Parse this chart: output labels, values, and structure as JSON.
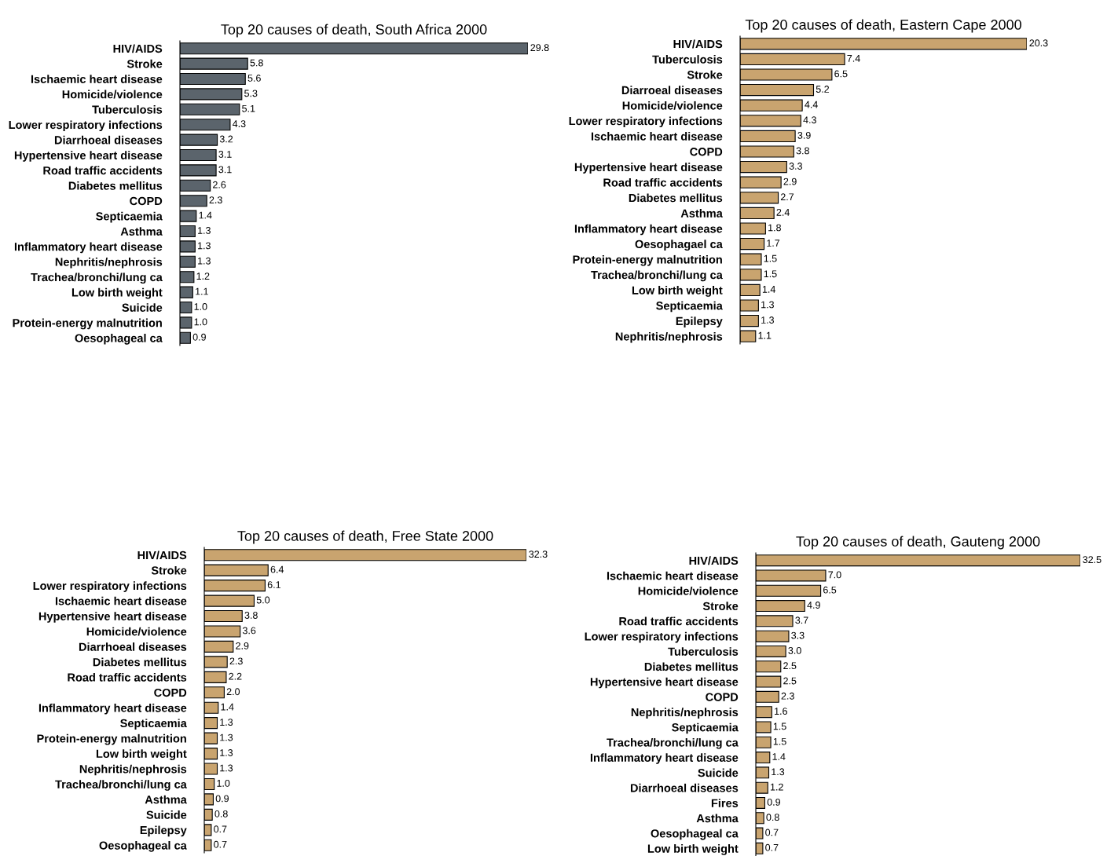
{
  "chart_data": [
    {
      "type": "bar",
      "orientation": "horizontal",
      "title": "Top 20 causes of death, South Africa 2000",
      "color": "#5b646c",
      "categories": [
        "HIV/AIDS",
        "Stroke",
        "Ischaemic heart disease",
        "Homicide/violence",
        "Tuberculosis",
        "Lower respiratory infections",
        "Diarrhoeal diseases",
        "Hypertensive heart disease",
        "Road traffic accidents",
        "Diabetes mellitus",
        "COPD",
        "Septicaemia",
        "Asthma",
        "Inflammatory heart disease",
        "Nephritis/nephrosis",
        "Trachea/bronchi/lung ca",
        "Low birth weight",
        "Suicide",
        "Protein-energy malnutrition",
        "Oesophageal ca"
      ],
      "values": [
        29.8,
        5.8,
        5.6,
        5.3,
        5.1,
        4.3,
        3.2,
        3.1,
        3.1,
        2.6,
        2.3,
        1.4,
        1.3,
        1.3,
        1.3,
        1.2,
        1.1,
        1.0,
        1.0,
        0.9
      ],
      "value_labels": [
        "29.8",
        "5.8",
        "5.6",
        "5.3",
        "5.1",
        "4.3",
        "3.2",
        "3.1",
        "3.1",
        "2.6",
        "2.3",
        "1.4",
        "1.3",
        "1.3",
        "1.3",
        "1.2",
        "1.1",
        "1.0",
        "1.0",
        "0.9"
      ]
    },
    {
      "type": "bar",
      "orientation": "horizontal",
      "title": "Top 20 causes of death, Eastern Cape 2000",
      "color": "#c9a46f",
      "categories": [
        "HIV/AIDS",
        "Tuberculosis",
        "Stroke",
        "Diarroeal diseases",
        "Homicide/violence",
        "Lower respiratory infections",
        "Ischaemic heart disease",
        "COPD",
        "Hypertensive heart disease",
        "Road traffic accidents",
        "Diabetes mellitus",
        "Asthma",
        "Inflammatory heart disease",
        "Oesophagael ca",
        "Protein-energy malnutrition",
        "Trachea/bronchi/lung ca",
        "Low birth weight",
        "Septicaemia",
        "Epilepsy",
        "Nephritis/nephrosis"
      ],
      "values": [
        20.3,
        7.4,
        6.5,
        5.2,
        4.4,
        4.3,
        3.9,
        3.8,
        3.3,
        2.9,
        2.7,
        2.4,
        1.8,
        1.7,
        1.5,
        1.5,
        1.4,
        1.3,
        1.3,
        1.1
      ],
      "value_labels": [
        "20.3",
        "7.4",
        "6.5",
        "5.2",
        "4.4",
        "4.3",
        "3.9",
        "3.8",
        "3.3",
        "2.9",
        "2.7",
        "2.4",
        "1.8",
        "1.7",
        "1.5",
        "1.5",
        "1.4",
        "1.3",
        "1.3",
        "1.1"
      ]
    },
    {
      "type": "bar",
      "orientation": "horizontal",
      "title": "Top 20 causes of death, Free State 2000",
      "color": "#c9a46f",
      "categories": [
        "HIV/AIDS",
        "Stroke",
        "Lower respiratory infections",
        "Ischaemic heart disease",
        "Hypertensive heart disease",
        "Homicide/violence",
        "Diarrhoeal diseases",
        "Diabetes mellitus",
        "Road traffic accidents",
        "COPD",
        "Inflammatory heart disease",
        "Septicaemia",
        "Protein-energy malnutrition",
        "Low birth weight",
        "Nephritis/nephrosis",
        "Trachea/bronchi/lung ca",
        "Asthma",
        "Suicide",
        "Epilepsy",
        "Oesophageal ca"
      ],
      "values": [
        32.3,
        6.4,
        6.1,
        5.0,
        3.8,
        3.6,
        2.9,
        2.3,
        2.2,
        2.0,
        1.4,
        1.3,
        1.3,
        1.3,
        1.3,
        1.0,
        0.9,
        0.8,
        0.7,
        0.7
      ],
      "value_labels": [
        "32.3",
        "6.4",
        "6.1",
        "5.0",
        "3.8",
        "3.6",
        "2.9",
        "2.3",
        "2.2",
        "2.0",
        "1.4",
        "1.3",
        "1.3",
        "1.3",
        "1.3",
        "1.0",
        "0.9",
        "0.8",
        "0.7",
        "0.7"
      ]
    },
    {
      "type": "bar",
      "orientation": "horizontal",
      "title": "Top 20 causes of death, Gauteng 2000",
      "color": "#c9a46f",
      "categories": [
        "HIV/AIDS",
        "Ischaemic heart disease",
        "Homicide/violence",
        "Stroke",
        "Road traffic accidents",
        "Lower respiratory infections",
        "Tuberculosis",
        "Diabetes mellitus",
        "Hypertensive heart disease",
        "COPD",
        "Nephritis/nephrosis",
        "Septicaemia",
        "Trachea/bronchi/lung ca",
        "Inflammatory heart disease",
        "Suicide",
        "Diarrhoeal diseases",
        "Fires",
        "Asthma",
        "Oesophageal ca",
        "Low birth weight"
      ],
      "values": [
        32.5,
        7.0,
        6.5,
        4.9,
        3.7,
        3.3,
        3.0,
        2.5,
        2.5,
        2.3,
        1.6,
        1.5,
        1.5,
        1.4,
        1.3,
        1.2,
        0.9,
        0.8,
        0.7,
        0.7
      ],
      "value_labels": [
        "32.5",
        "7.0",
        "6.5",
        "4.9",
        "3.7",
        "3.3",
        "3.0",
        "2.5",
        "2.5",
        "2.3",
        "1.6",
        "1.5",
        "1.5",
        "1.4",
        "1.3",
        "1.2",
        "0.9",
        "0.8",
        "0.7",
        "0.7"
      ]
    }
  ]
}
